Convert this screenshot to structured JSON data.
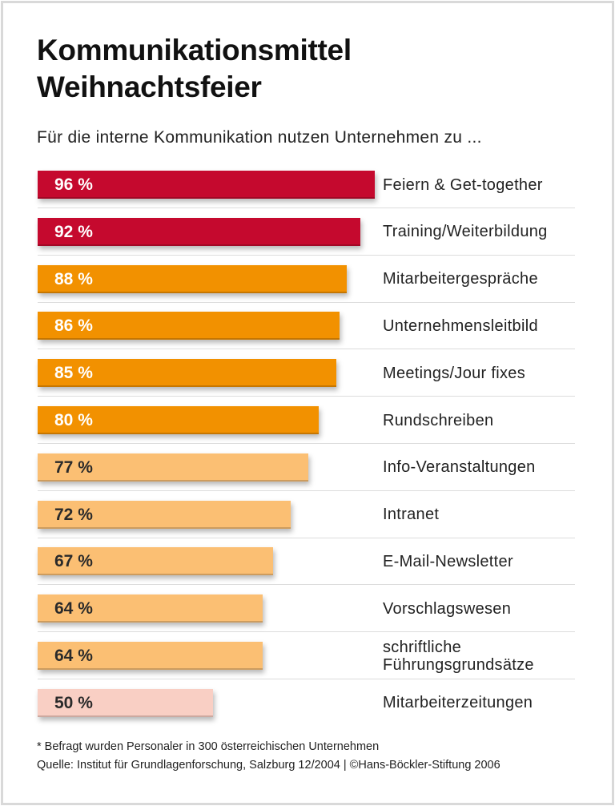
{
  "chart_data": {
    "type": "bar",
    "orientation": "horizontal",
    "title": "Kommunikationsmittel Weihnachtsfeier",
    "title_lines": [
      "Kommunikationsmittel",
      "Weihnachtsfeier"
    ],
    "subtitle": "Für die interne Kommunikation nutzen Unternehmen zu ...",
    "categories": [
      "Feiern & Get-together",
      "Training/Weiterbildung",
      "Mitarbeitergespräche",
      "Unternehmensleitbild",
      "Meetings/Jour fixes",
      "Rundschreiben",
      "Info-Veranstaltungen",
      "Intranet",
      "E-Mail-Newsletter",
      "Vorschlagswesen",
      "schriftliche Führungsgrundsätze",
      "Mitarbeiterzeitungen"
    ],
    "category_lines": [
      [
        "Feiern & Get-together"
      ],
      [
        "Training/Weiterbildung"
      ],
      [
        "Mitarbeitergespräche"
      ],
      [
        "Unternehmensleitbild"
      ],
      [
        "Meetings/Jour fixes"
      ],
      [
        "Rundschreiben"
      ],
      [
        "Info-Veranstaltungen"
      ],
      [
        "Intranet"
      ],
      [
        "E-Mail-Newsletter"
      ],
      [
        "Vorschlagswesen"
      ],
      [
        "schriftliche",
        "Führungsgrundsätze"
      ],
      [
        "Mitarbeiterzeitungen"
      ]
    ],
    "values": [
      96,
      92,
      88,
      86,
      85,
      80,
      77,
      72,
      67,
      64,
      64,
      50
    ],
    "value_labels": [
      "96 %",
      "92 %",
      "88 %",
      "86 %",
      "85 %",
      "80 %",
      "77 %",
      "72 %",
      "67 %",
      "64 %",
      "64 %",
      "50 %"
    ],
    "unit": "%",
    "xlim": [
      0,
      100
    ],
    "bar_colors": [
      "#c5092e",
      "#c5092e",
      "#f29100",
      "#f29100",
      "#f29100",
      "#f29100",
      "#fbbf73",
      "#fbbf73",
      "#fbbf73",
      "#fbbf73",
      "#fbbf73",
      "#f9cfc4"
    ],
    "label_colors": [
      "#ffffff",
      "#ffffff",
      "#ffffff",
      "#ffffff",
      "#ffffff",
      "#ffffff",
      "#2a2a2a",
      "#2a2a2a",
      "#2a2a2a",
      "#2a2a2a",
      "#2a2a2a",
      "#2a2a2a"
    ],
    "grid": false,
    "legend": "none"
  },
  "footnote": "* Befragt wurden Personaler in 300 österreichischen Unternehmen",
  "source": "Quelle: Institut für Grundlagenforschung, Salzburg 12/2004 | ©Hans-Böckler-Stiftung 2006"
}
